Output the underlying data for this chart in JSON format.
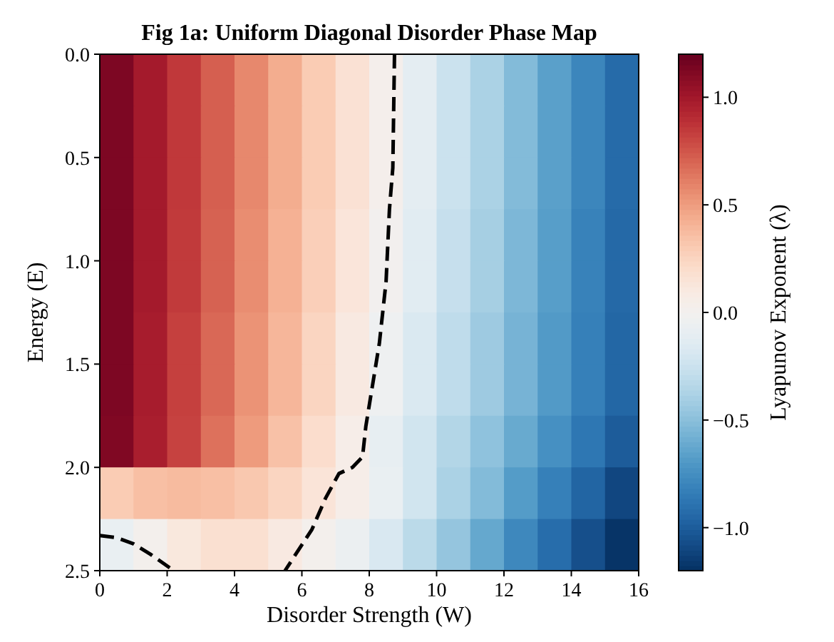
{
  "chart_data": {
    "type": "heatmap",
    "title": "Fig 1a: Uniform Diagonal Disorder Phase Map",
    "xlabel": "Disorder Strength (W)",
    "ylabel": "Energy (E)",
    "clabel": "Lyapunov Exponent (λ)",
    "xlim": [
      0,
      16
    ],
    "xticks": [
      0,
      2,
      4,
      6,
      8,
      10,
      12,
      14,
      16
    ],
    "ylim": [
      2.5,
      0
    ],
    "yticks": [
      {
        "value": 0,
        "label": "0.0"
      },
      {
        "value": 0.5,
        "label": "0.5"
      },
      {
        "value": 1,
        "label": "1.0"
      },
      {
        "value": 1.5,
        "label": "1.5"
      },
      {
        "value": 2,
        "label": "2.0"
      },
      {
        "value": 2.5,
        "label": "2.5"
      }
    ],
    "clim": [
      -1.2,
      1.2
    ],
    "cticks": [
      {
        "value": -1,
        "label": "−1.0"
      },
      {
        "value": -0.5,
        "label": "−0.5"
      },
      {
        "value": 0,
        "label": "0.0"
      },
      {
        "value": 0.5,
        "label": "0.5"
      },
      {
        "value": 1,
        "label": "1.0"
      }
    ],
    "cells": [
      [
        1.13,
        0.99,
        0.86,
        0.72,
        0.58,
        0.44,
        0.3,
        0.17,
        0.03,
        -0.11,
        -0.25,
        -0.38,
        -0.52,
        -0.66,
        -0.79,
        -0.93
      ],
      [
        1.13,
        0.99,
        0.86,
        0.72,
        0.58,
        0.44,
        0.3,
        0.17,
        0.03,
        -0.11,
        -0.25,
        -0.38,
        -0.52,
        -0.66,
        -0.79,
        -0.93
      ],
      [
        1.13,
        0.99,
        0.86,
        0.72,
        0.58,
        0.44,
        0.3,
        0.17,
        0.03,
        -0.11,
        -0.25,
        -0.38,
        -0.52,
        -0.66,
        -0.79,
        -0.93
      ],
      [
        1.13,
        0.99,
        0.85,
        0.71,
        0.56,
        0.42,
        0.28,
        0.14,
        0.0,
        -0.13,
        -0.27,
        -0.4,
        -0.54,
        -0.67,
        -0.81,
        -0.94
      ],
      [
        1.13,
        0.99,
        0.85,
        0.71,
        0.56,
        0.42,
        0.28,
        0.14,
        0.0,
        -0.13,
        -0.27,
        -0.4,
        -0.54,
        -0.67,
        -0.81,
        -0.94
      ],
      [
        1.13,
        0.98,
        0.83,
        0.69,
        0.54,
        0.4,
        0.25,
        0.1,
        -0.04,
        -0.17,
        -0.3,
        -0.43,
        -0.56,
        -0.69,
        -0.82,
        -0.95
      ],
      [
        1.13,
        0.98,
        0.83,
        0.69,
        0.54,
        0.4,
        0.25,
        0.1,
        -0.04,
        -0.17,
        -0.3,
        -0.43,
        -0.56,
        -0.69,
        -0.82,
        -0.95
      ],
      [
        1.12,
        0.97,
        0.82,
        0.66,
        0.51,
        0.35,
        0.2,
        0.05,
        -0.09,
        -0.22,
        -0.35,
        -0.48,
        -0.61,
        -0.74,
        -0.87,
        -1.0
      ],
      [
        0.3,
        0.36,
        0.38,
        0.36,
        0.32,
        0.25,
        0.15,
        0.05,
        -0.08,
        -0.22,
        -0.38,
        -0.52,
        -0.68,
        -0.82,
        -0.96,
        -1.1
      ],
      [
        -0.08,
        0.02,
        0.12,
        0.18,
        0.18,
        0.1,
        0.02,
        -0.06,
        -0.18,
        -0.32,
        -0.46,
        -0.62,
        -0.78,
        -0.92,
        -1.06,
        -1.18
      ]
    ],
    "series": [
      {
        "type": "line",
        "color": "#000000",
        "line_style": "dashed",
        "x": [
          8.75,
          8.7,
          8.6,
          8.5,
          8.3,
          8.0,
          7.9,
          7.8,
          7.5,
          7.1,
          6.7,
          6.3,
          5.5
        ],
        "values": [
          0,
          0.55,
          0.75,
          1.1,
          1.4,
          1.7,
          1.8,
          1.95,
          2.0,
          2.03,
          2.15,
          2.3,
          2.5
        ]
      },
      {
        "type": "line",
        "color": "#000000",
        "line_style": "dashed",
        "x": [
          0,
          0.5,
          1,
          1.5,
          2.2
        ],
        "values": [
          2.33,
          2.34,
          2.37,
          2.42,
          2.5
        ]
      }
    ]
  }
}
